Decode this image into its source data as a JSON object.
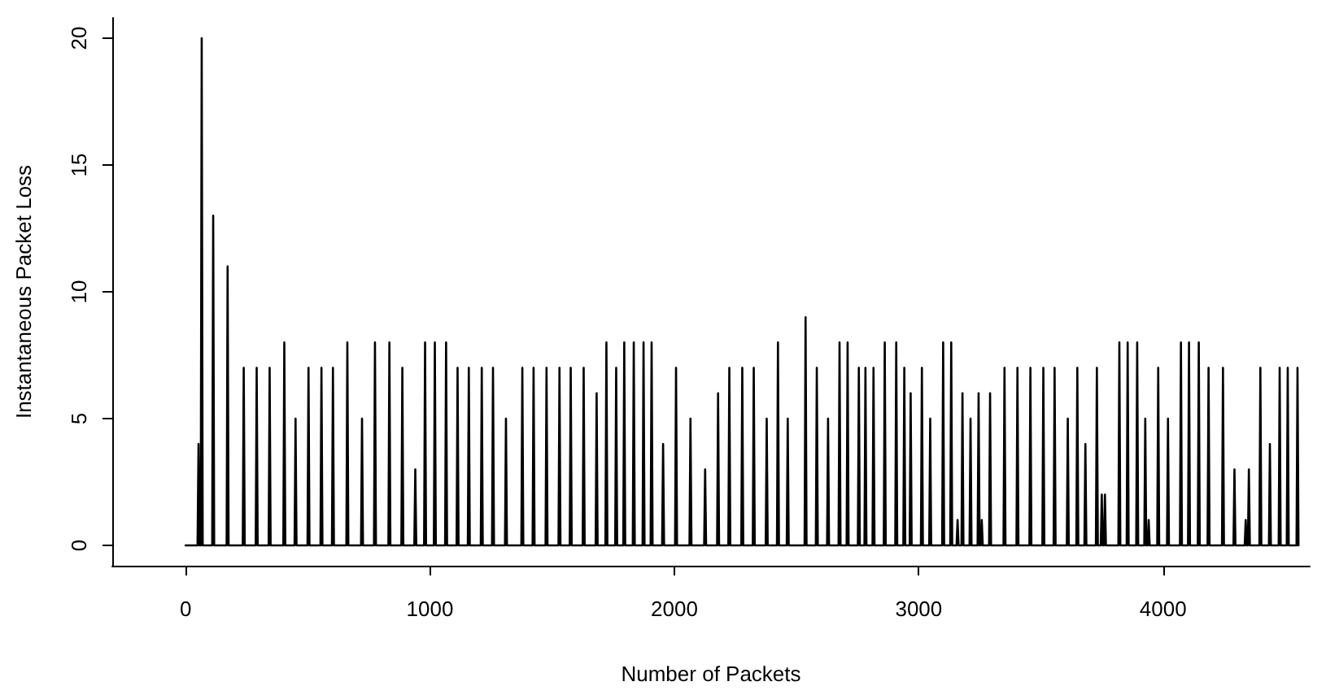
{
  "chart_data": {
    "type": "line",
    "xlabel": "Number of Packets",
    "ylabel": "Instantaneous Packet Loss",
    "x": [
      0,
      49,
      53,
      57,
      62,
      66,
      70,
      109,
      113,
      117,
      168,
      172,
      176,
      234,
      238,
      242,
      287,
      291,
      295,
      340,
      344,
      348,
      400,
      404,
      408,
      446,
      450,
      454,
      499,
      503,
      507,
      552,
      556,
      560,
      599,
      603,
      607,
      658,
      662,
      666,
      718,
      722,
      726,
      771,
      775,
      779,
      830,
      834,
      838,
      883,
      887,
      891,
      936,
      940,
      944,
      976,
      980,
      984,
      1016,
      1020,
      1024,
      1062,
      1066,
      1070,
      1109,
      1113,
      1117,
      1155,
      1159,
      1163,
      1208,
      1212,
      1216,
      1254,
      1258,
      1262,
      1307,
      1311,
      1315,
      1374,
      1378,
      1382,
      1420,
      1424,
      1428,
      1473,
      1477,
      1481,
      1526,
      1530,
      1534,
      1572,
      1576,
      1580,
      1625,
      1629,
      1633,
      1678,
      1682,
      1686,
      1718,
      1722,
      1726,
      1758,
      1762,
      1766,
      1791,
      1795,
      1799,
      1830,
      1834,
      1838,
      1870,
      1874,
      1878,
      1903,
      1907,
      1911,
      1950,
      1954,
      1958,
      2003,
      2007,
      2011,
      2062,
      2066,
      2070,
      2122,
      2126,
      2130,
      2175,
      2179,
      2183,
      2221,
      2225,
      2229,
      2274,
      2278,
      2282,
      2321,
      2325,
      2329,
      2374,
      2378,
      2382,
      2420,
      2424,
      2428,
      2460,
      2464,
      2468,
      2533,
      2537,
      2541,
      2579,
      2583,
      2587,
      2625,
      2629,
      2633,
      2672,
      2676,
      2680,
      2705,
      2709,
      2713,
      2751,
      2755,
      2759,
      2778,
      2782,
      2786,
      2811,
      2815,
      2819,
      2857,
      2861,
      2865,
      2904,
      2908,
      2912,
      2937,
      2941,
      2945,
      2963,
      2967,
      2971,
      3009,
      3013,
      3017,
      3043,
      3047,
      3051,
      3096,
      3100,
      3104,
      3129,
      3133,
      3137,
      3155,
      3159,
      3163,
      3175,
      3179,
      3183,
      3208,
      3212,
      3216,
      3241,
      3245,
      3249,
      3254,
      3258,
      3262,
      3288,
      3292,
      3296,
      3347,
      3351,
      3355,
      3400,
      3404,
      3408,
      3453,
      3457,
      3461,
      3506,
      3510,
      3514,
      3552,
      3556,
      3560,
      3606,
      3610,
      3614,
      3645,
      3649,
      3653,
      3678,
      3682,
      3686,
      3725,
      3729,
      3733,
      3745,
      3749,
      3753,
      3758,
      3762,
      3766,
      3817,
      3821,
      3825,
      3851,
      3855,
      3859,
      3890,
      3894,
      3898,
      3923,
      3927,
      3931,
      3937,
      3941,
      3945,
      3976,
      3980,
      3984,
      4016,
      4020,
      4024,
      4069,
      4073,
      4077,
      4102,
      4106,
      4110,
      4142,
      4146,
      4150,
      4182,
      4186,
      4190,
      4241,
      4245,
      4249,
      4288,
      4292,
      4296,
      4334,
      4338,
      4342,
      4347,
      4351,
      4355,
      4394,
      4398,
      4402,
      4433,
      4437,
      4441,
      4473,
      4477,
      4481,
      4506,
      4510,
      4514,
      4546,
      4550,
      4554
    ],
    "series": [
      {
        "color": "#000000",
        "values": [
          0,
          0,
          4,
          0,
          0,
          20,
          0,
          0,
          13,
          0,
          0,
          11,
          0,
          0,
          7,
          0,
          0,
          7,
          0,
          0,
          7,
          0,
          0,
          8,
          0,
          0,
          5,
          0,
          0,
          7,
          0,
          0,
          7,
          0,
          0,
          7,
          0,
          0,
          8,
          0,
          0,
          5,
          0,
          0,
          8,
          0,
          0,
          8,
          0,
          0,
          7,
          0,
          0,
          3,
          0,
          0,
          8,
          0,
          0,
          8,
          0,
          0,
          8,
          0,
          0,
          7,
          0,
          0,
          7,
          0,
          0,
          7,
          0,
          0,
          7,
          0,
          0,
          5,
          0,
          0,
          7,
          0,
          0,
          7,
          0,
          0,
          7,
          0,
          0,
          7,
          0,
          0,
          7,
          0,
          0,
          7,
          0,
          0,
          6,
          0,
          0,
          8,
          0,
          0,
          7,
          0,
          0,
          8,
          0,
          0,
          8,
          0,
          0,
          8,
          0,
          0,
          8,
          0,
          0,
          4,
          0,
          0,
          7,
          0,
          0,
          5,
          0,
          0,
          3,
          0,
          0,
          6,
          0,
          0,
          7,
          0,
          0,
          7,
          0,
          0,
          7,
          0,
          0,
          5,
          0,
          0,
          8,
          0,
          0,
          5,
          0,
          0,
          9,
          0,
          0,
          7,
          0,
          0,
          5,
          0,
          0,
          8,
          0,
          0,
          8,
          0,
          0,
          7,
          0,
          0,
          7,
          0,
          0,
          7,
          0,
          0,
          8,
          0,
          0,
          8,
          0,
          0,
          7,
          0,
          0,
          6,
          0,
          0,
          7,
          0,
          0,
          5,
          0,
          0,
          8,
          0,
          0,
          8,
          0,
          0,
          1,
          0,
          0,
          6,
          0,
          0,
          5,
          0,
          0,
          6,
          0,
          0,
          1,
          0,
          0,
          6,
          0,
          0,
          7,
          0,
          0,
          7,
          0,
          0,
          7,
          0,
          0,
          7,
          0,
          0,
          7,
          0,
          0,
          5,
          0,
          0,
          7,
          0,
          0,
          4,
          0,
          0,
          7,
          0,
          0,
          2,
          0,
          0,
          2,
          0,
          0,
          8,
          0,
          0,
          8,
          0,
          0,
          8,
          0,
          0,
          5,
          0,
          0,
          1,
          0,
          0,
          7,
          0,
          0,
          5,
          0,
          0,
          8,
          0,
          0,
          8,
          0,
          0,
          8,
          0,
          0,
          7,
          0,
          0,
          7,
          0,
          0,
          3,
          0,
          0,
          1,
          0,
          0,
          3,
          0,
          0,
          7,
          0,
          0,
          4,
          0,
          0,
          7,
          0,
          0,
          7,
          0,
          0,
          7,
          0
        ]
      }
    ],
    "xlim": [
      -300,
      4600
    ],
    "xticks": [
      0,
      1000,
      2000,
      3000,
      4000
    ],
    "ylim": [
      -0.8,
      20.8
    ],
    "yticks": [
      0,
      5,
      10,
      15,
      20
    ],
    "grid": false,
    "marker": "none",
    "line_style": "solid"
  }
}
